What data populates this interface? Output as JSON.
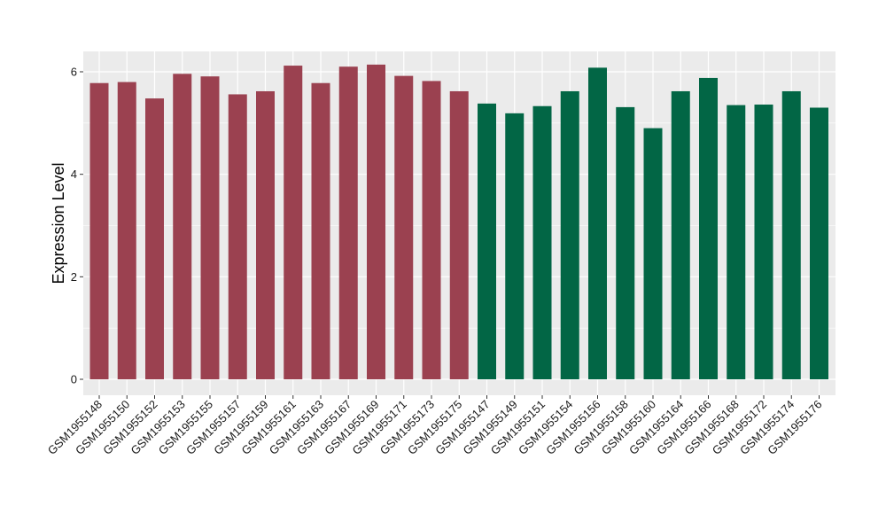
{
  "chart_data": {
    "type": "bar",
    "title": "",
    "xlabel": "",
    "ylabel": "Expression Level",
    "ylim": [
      0,
      6.5
    ],
    "yticks": [
      0,
      2,
      4,
      6
    ],
    "grid": true,
    "legend": "none",
    "categories": [
      "GSM1955148",
      "GSM1955150",
      "GSM1955152",
      "GSM1955153",
      "GSM1955155",
      "GSM1955157",
      "GSM1955159",
      "GSM1955161",
      "GSM1955163",
      "GSM1955167",
      "GSM1955169",
      "GSM1955171",
      "GSM1955173",
      "GSM1955175",
      "GSM1955147",
      "GSM1955149",
      "GSM1955151",
      "GSM1955154",
      "GSM1955156",
      "GSM1955158",
      "GSM1955160",
      "GSM1955164",
      "GSM1955166",
      "GSM1955168",
      "GSM1955172",
      "GSM1955174",
      "GSM1955176"
    ],
    "values": [
      5.78,
      5.8,
      5.48,
      5.96,
      5.91,
      5.56,
      5.62,
      6.12,
      5.78,
      6.1,
      6.14,
      5.92,
      5.82,
      5.62,
      5.38,
      5.19,
      5.33,
      5.62,
      6.08,
      5.31,
      4.9,
      5.62,
      5.88,
      5.35,
      5.36,
      5.62,
      5.3
    ],
    "groups": [
      "A",
      "A",
      "A",
      "A",
      "A",
      "A",
      "A",
      "A",
      "A",
      "A",
      "A",
      "A",
      "A",
      "A",
      "B",
      "B",
      "B",
      "B",
      "B",
      "B",
      "B",
      "B",
      "B",
      "B",
      "B",
      "B",
      "B"
    ],
    "colors": {
      "A": "#9b4150",
      "B": "#026645"
    },
    "panel_background": "#ebebeb",
    "grid_color": "#ffffff"
  }
}
